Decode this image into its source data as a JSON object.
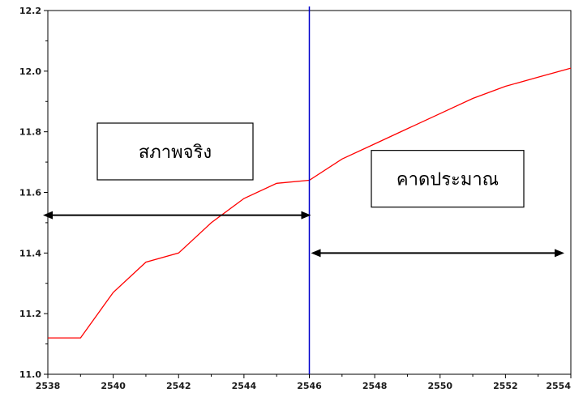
{
  "chart_data": {
    "type": "line",
    "title": "",
    "xlabel": "",
    "ylabel": "",
    "xlim": [
      2538,
      2554
    ],
    "ylim": [
      11.0,
      12.2
    ],
    "x_ticks": [
      2538,
      2540,
      2542,
      2544,
      2546,
      2548,
      2550,
      2552,
      2554
    ],
    "y_ticks": [
      11.0,
      11.2,
      11.4,
      11.6,
      11.8,
      12.0,
      12.2
    ],
    "x_tick_labels": [
      "2538",
      "2540",
      "2542",
      "2544",
      "2546",
      "2548",
      "2550",
      "2552",
      "2554"
    ],
    "y_tick_labels": [
      "11.0",
      "11.2",
      "11.4",
      "11.6",
      "11.8",
      "12.0",
      "12.2"
    ],
    "grid": false,
    "series": [
      {
        "color": "#ff0000",
        "x": [
          2538,
          2539,
          2540,
          2541,
          2542,
          2543,
          2544,
          2545,
          2546,
          2547,
          2548,
          2549,
          2550,
          2551,
          2552,
          2553,
          2554
        ],
        "y": [
          11.12,
          11.12,
          11.27,
          11.37,
          11.4,
          11.5,
          11.58,
          11.63,
          11.64,
          11.71,
          11.76,
          11.81,
          11.86,
          11.91,
          11.95,
          11.98,
          12.01
        ]
      }
    ],
    "divider": {
      "x": 2546,
      "color": "#0000cc"
    },
    "annotations": [
      {
        "text": "สภาพจริง",
        "range": [
          2538,
          2546
        ]
      },
      {
        "text": "คาดประมาณ",
        "range": [
          2546,
          2554
        ]
      }
    ]
  }
}
